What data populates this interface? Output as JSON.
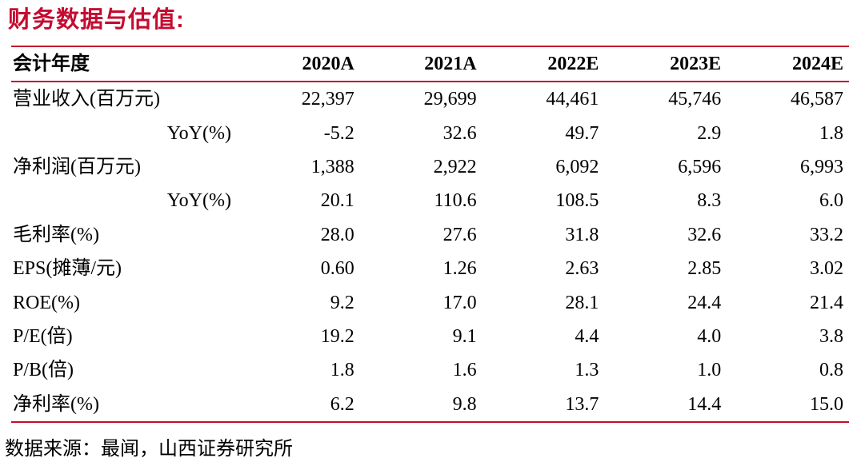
{
  "title": "财务数据与估值:",
  "colors": {
    "accent": "#c40c30",
    "text": "#000000",
    "background": "#ffffff"
  },
  "table": {
    "header": {
      "label": "会计年度",
      "years": [
        "2020A",
        "2021A",
        "2022E",
        "2023E",
        "2024E"
      ]
    },
    "rows": [
      {
        "label": "营业收入(百万元)",
        "indent": false,
        "values": [
          "22,397",
          "29,699",
          "44,461",
          "45,746",
          "46,587"
        ]
      },
      {
        "label": "YoY(%)",
        "indent": true,
        "values": [
          "-5.2",
          "32.6",
          "49.7",
          "2.9",
          "1.8"
        ]
      },
      {
        "label": "净利润(百万元)",
        "indent": false,
        "values": [
          "1,388",
          "2,922",
          "6,092",
          "6,596",
          "6,993"
        ]
      },
      {
        "label": "YoY(%)",
        "indent": true,
        "values": [
          "20.1",
          "110.6",
          "108.5",
          "8.3",
          "6.0"
        ]
      },
      {
        "label": "毛利率(%)",
        "indent": false,
        "values": [
          "28.0",
          "27.6",
          "31.8",
          "32.6",
          "33.2"
        ]
      },
      {
        "label": "EPS(摊薄/元)",
        "indent": false,
        "values": [
          "0.60",
          "1.26",
          "2.63",
          "2.85",
          "3.02"
        ]
      },
      {
        "label": "ROE(%)",
        "indent": false,
        "values": [
          "9.2",
          "17.0",
          "28.1",
          "24.4",
          "21.4"
        ]
      },
      {
        "label": "P/E(倍)",
        "indent": false,
        "values": [
          "19.2",
          "9.1",
          "4.4",
          "4.0",
          "3.8"
        ]
      },
      {
        "label": "P/B(倍)",
        "indent": false,
        "values": [
          "1.8",
          "1.6",
          "1.3",
          "1.0",
          "0.8"
        ]
      },
      {
        "label": "净利率(%)",
        "indent": false,
        "values": [
          "6.2",
          "9.8",
          "13.7",
          "14.4",
          "15.0"
        ]
      }
    ]
  },
  "footer": {
    "source": "数据来源：最闻，山西证券研究所"
  }
}
